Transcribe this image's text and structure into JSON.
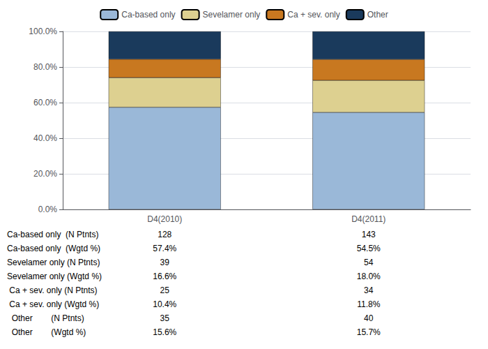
{
  "chart_data": {
    "type": "bar",
    "stacked": true,
    "categories": [
      "D4(2010)",
      "D4(2011)"
    ],
    "series": [
      {
        "name": "Ca-based only",
        "color": "#9ab8d8",
        "values": [
          57.4,
          54.5
        ]
      },
      {
        "name": "Sevelamer only",
        "color": "#ddd090",
        "values": [
          16.6,
          18.0
        ]
      },
      {
        "name": "Ca + sev. only",
        "color": "#c87820",
        "values": [
          10.4,
          11.8
        ]
      },
      {
        "name": "Other",
        "color": "#1a3a5c",
        "values": [
          15.6,
          15.7
        ]
      }
    ],
    "ylim": [
      0,
      100
    ],
    "yticks": [
      {
        "value": 0,
        "label": "0.0%"
      },
      {
        "value": 20,
        "label": "20.0%"
      },
      {
        "value": 40,
        "label": "40.0%"
      },
      {
        "value": 60,
        "label": "60.0%"
      },
      {
        "value": 80,
        "label": "80.0%"
      },
      {
        "value": 100,
        "label": "100.0%"
      }
    ],
    "grid": true,
    "legend": "top",
    "table": [
      {
        "label": "Ca-based only  (N Ptnts)",
        "cells": [
          "128",
          "143"
        ]
      },
      {
        "label": "Ca-based only  (Wgtd %)",
        "cells": [
          "57.4%",
          "54.5%"
        ]
      },
      {
        "label": "Sevelamer only (N Ptnts)",
        "cells": [
          "39",
          "54"
        ]
      },
      {
        "label": "Sevelamer only (Wgtd %)",
        "cells": [
          "16.6%",
          "18.0%"
        ]
      },
      {
        "label": " Ca + sev. only (N Ptnts)",
        "cells": [
          "25",
          "34"
        ]
      },
      {
        "label": " Ca + sev. only (Wgtd %)",
        "cells": [
          "10.4%",
          "11.8%"
        ]
      },
      {
        "label": "  Other        (N Ptnts)",
        "cells": [
          "35",
          "40"
        ]
      },
      {
        "label": "  Other        (Wgtd %)",
        "cells": [
          "15.6%",
          "15.7%"
        ]
      }
    ]
  }
}
